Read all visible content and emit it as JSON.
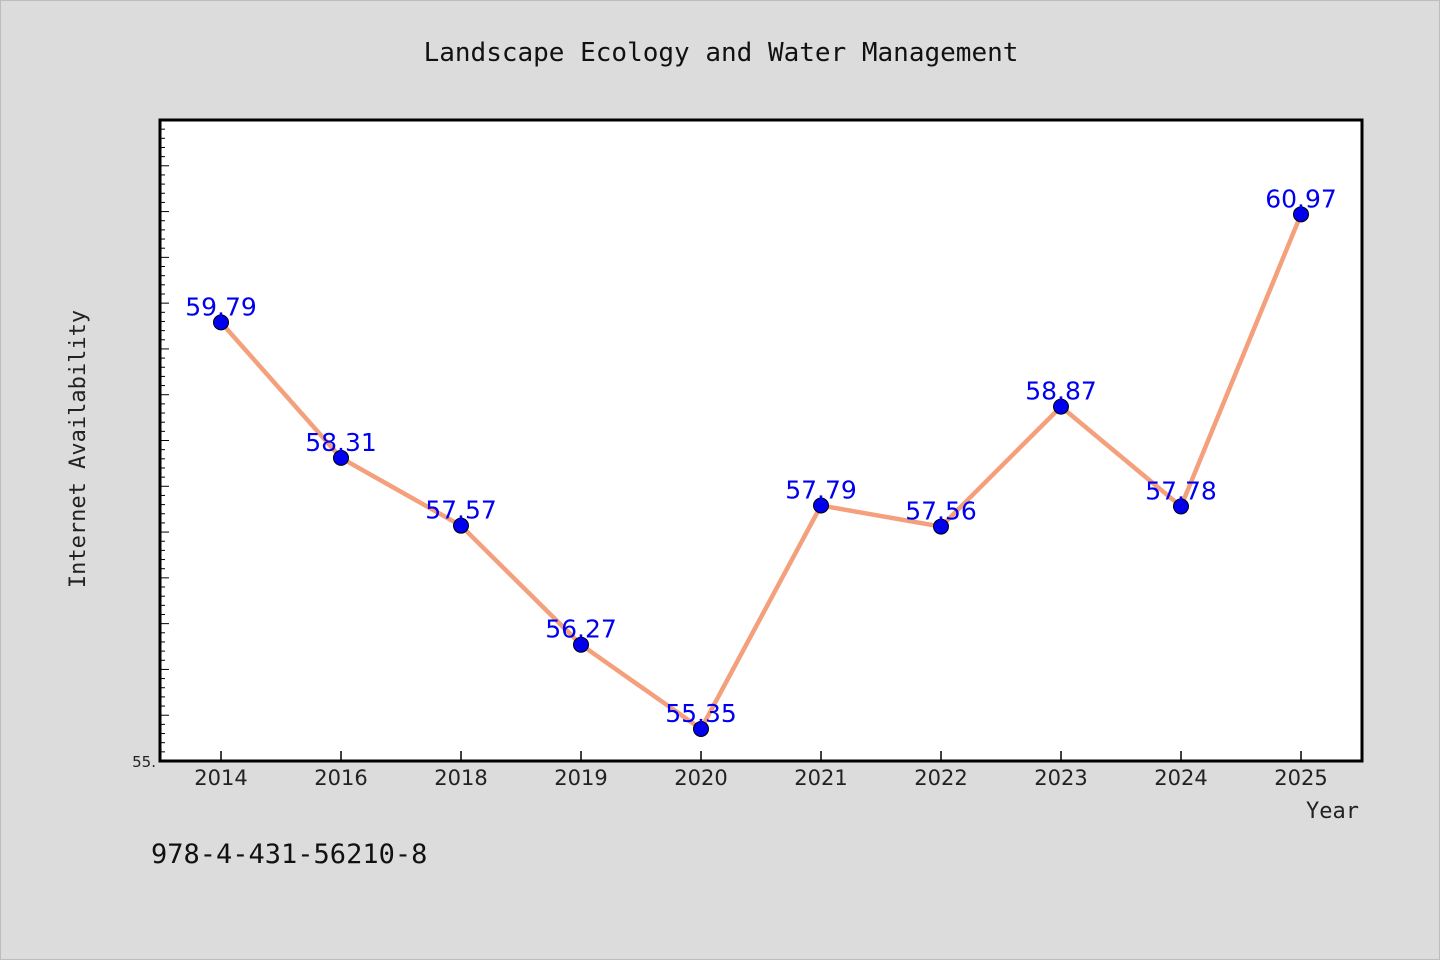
{
  "chart_data": {
    "type": "line",
    "title": "Landscape Ecology and Water Management",
    "xlabel": "Year",
    "ylabel": "Internet Availability",
    "categories": [
      "2014",
      "2016",
      "2018",
      "2019",
      "2020",
      "2021",
      "2022",
      "2023",
      "2024",
      "2025"
    ],
    "series": [
      {
        "values": [
          59.79,
          58.31,
          57.57,
          56.27,
          55.35,
          57.79,
          57.56,
          58.87,
          57.78,
          60.97
        ],
        "data_labels": [
          "59.79",
          "58.31",
          "57.57",
          "56.27",
          "55.35",
          "57.79",
          "57.56",
          "58.87",
          "57.78",
          "60.97"
        ]
      }
    ],
    "ylim": [
      55.0,
      62.0
    ],
    "y_tick_label_shown": "55.",
    "grid": false,
    "legend": "none",
    "colors": {
      "line": "#f4a07c",
      "marker": "#0000ee",
      "data_label": "#0000ee",
      "plot_background": "#ffffff",
      "figure_background": "#dcdcdc"
    }
  },
  "footer": {
    "code": "978-4-431-56210-8"
  }
}
